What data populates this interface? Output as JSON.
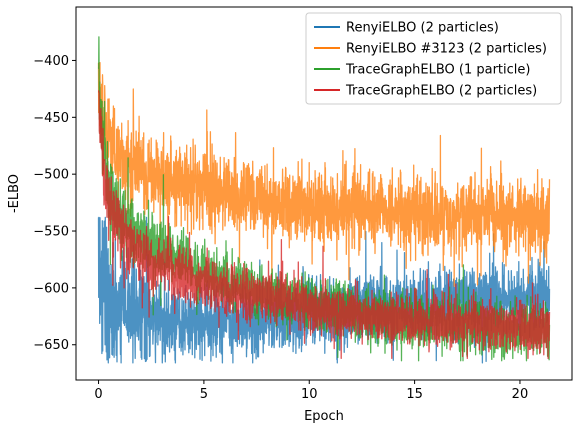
{
  "chart_data": {
    "type": "line",
    "xlabel": "Epoch",
    "ylabel": "-ELBO",
    "xlim": [
      -1.07,
      22.47
    ],
    "ylim": [
      -681,
      -353
    ],
    "xticks": [
      0,
      5,
      10,
      15,
      20
    ],
    "yticks": [
      -650,
      -600,
      -550,
      -500,
      -450,
      -400
    ],
    "grid": false,
    "legend_position": "top-right",
    "x_max": 21.4,
    "series": [
      {
        "name": "RenyiELBO (2 particles)",
        "color": "#1f77b4",
        "trend": {
          "x": [
            0,
            0.15,
            0.4,
            1,
            2,
            3,
            5,
            7,
            10,
            13,
            16,
            19,
            21.4
          ],
          "y": [
            -560,
            -590,
            -608,
            -618,
            -624,
            -627,
            -630,
            -628,
            -622,
            -617,
            -613,
            -610,
            -607
          ]
        },
        "noise": [
          0.3,
          0.13
        ],
        "envelope": {
          "min": -666,
          "max": -538
        }
      },
      {
        "name": "RenyiELBO #3123 (2 particles)",
        "color": "#ff7f0e",
        "trend": {
          "x": [
            0,
            0.1,
            0.3,
            0.7,
            1.5,
            3,
            5,
            7,
            10,
            13,
            16,
            19,
            21.4
          ],
          "y": [
            -420,
            -440,
            -460,
            -480,
            -495,
            -505,
            -515,
            -522,
            -528,
            -532,
            -535,
            -537,
            -538
          ]
        },
        "noise": [
          0.24,
          0.16
        ],
        "envelope": {
          "min": -600,
          "max": -402
        }
      },
      {
        "name": "TraceGraphELBO (1 particle)",
        "color": "#2ca02c",
        "trend": {
          "x": [
            0,
            0.05,
            0.2,
            0.5,
            1,
            2,
            3,
            5,
            7,
            10,
            13,
            16,
            19,
            21.4
          ],
          "y": [
            -400,
            -430,
            -480,
            -510,
            -535,
            -555,
            -567,
            -585,
            -600,
            -615,
            -625,
            -632,
            -636,
            -638
          ]
        },
        "noise": [
          0.22,
          0.1
        ],
        "envelope": {
          "min": -664,
          "max": -365
        }
      },
      {
        "name": "TraceGraphELBO (2 particles)",
        "color": "#d62728",
        "trend": {
          "x": [
            0,
            0.05,
            0.2,
            0.5,
            1,
            2,
            3,
            5,
            7,
            10,
            13,
            16,
            19,
            21.4
          ],
          "y": [
            -410,
            -450,
            -495,
            -525,
            -550,
            -570,
            -580,
            -595,
            -605,
            -617,
            -625,
            -630,
            -634,
            -636
          ]
        },
        "noise": [
          0.2,
          0.09
        ],
        "envelope": {
          "min": -662,
          "max": -400
        }
      }
    ]
  }
}
